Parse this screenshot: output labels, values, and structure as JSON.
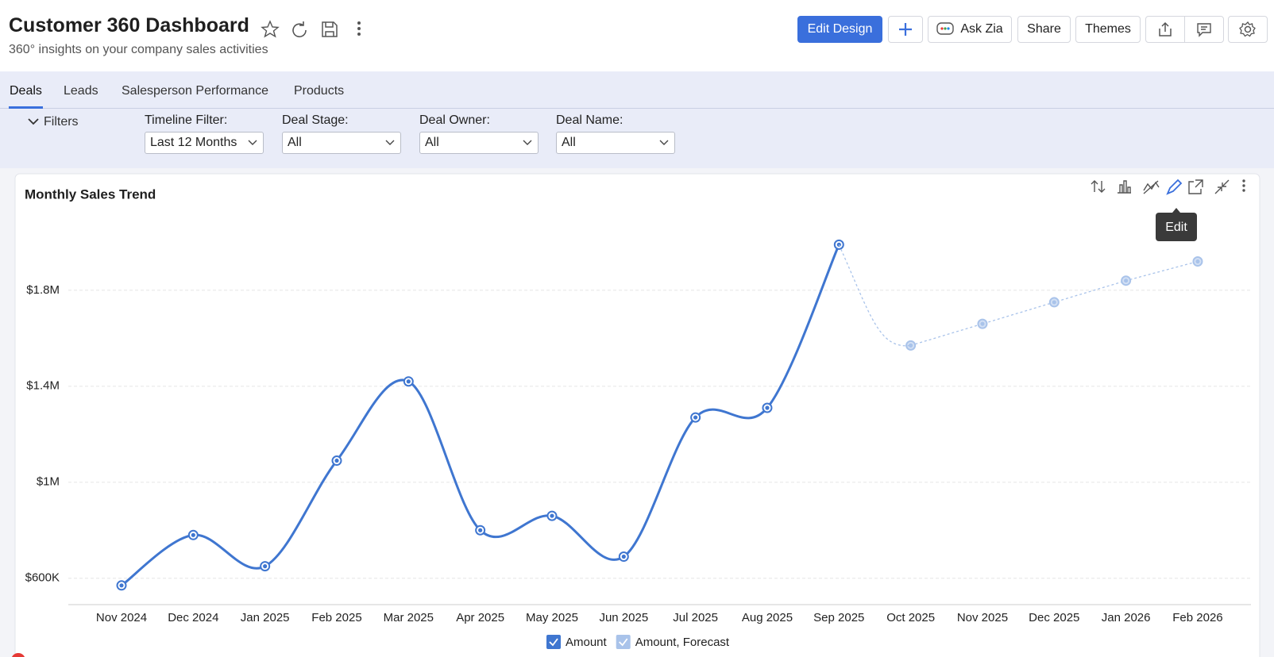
{
  "header": {
    "title": "Customer 360 Dashboard",
    "subtitle": "360° insights on your company sales activities",
    "buttons": [
      "Edit Design",
      "Ask Zia",
      "Share",
      "Themes"
    ]
  },
  "tabs": [
    "Deals",
    "Leads",
    "Salesperson Performance",
    "Products"
  ],
  "filters": {
    "toggle": "Filters",
    "items": [
      {
        "label": "Timeline Filter:",
        "value": "Last 12 Months"
      },
      {
        "label": "Deal Stage:",
        "value": "All"
      },
      {
        "label": "Deal Owner:",
        "value": "All"
      },
      {
        "label": "Deal Name:",
        "value": "All"
      }
    ]
  },
  "tooltip": "Edit",
  "chart_data": {
    "type": "line",
    "title": "Monthly Sales Trend",
    "categories": [
      "Nov 2024",
      "Dec 2024",
      "Jan 2025",
      "Feb 2025",
      "Mar 2025",
      "Apr 2025",
      "May 2025",
      "Jun 2025",
      "Jul 2025",
      "Aug 2025",
      "Sep 2025",
      "Oct 2025",
      "Nov 2025",
      "Dec 2025",
      "Jan 2026",
      "Feb 2026"
    ],
    "series": [
      {
        "name": "Amount",
        "color": "#3f76d0",
        "dashed": false,
        "values": [
          570000,
          780000,
          650000,
          1090000,
          1420000,
          800000,
          860000,
          690000,
          1270000,
          1310000,
          1990000,
          null,
          null,
          null,
          null,
          null
        ]
      },
      {
        "name": "Amount, Forecast",
        "color": "#a9c3ea",
        "dashed": true,
        "values": [
          null,
          null,
          null,
          null,
          null,
          null,
          null,
          null,
          null,
          null,
          null,
          1570000,
          1660000,
          1750000,
          1840000,
          1920000
        ]
      }
    ],
    "ylim": [
      490000,
      2130000
    ],
    "yticks": [
      {
        "value": 600000,
        "label": "$600K"
      },
      {
        "value": 1000000,
        "label": "$1M"
      },
      {
        "value": 1400000,
        "label": "$1.4M"
      },
      {
        "value": 1800000,
        "label": "$1.8M"
      }
    ],
    "grid": true
  }
}
